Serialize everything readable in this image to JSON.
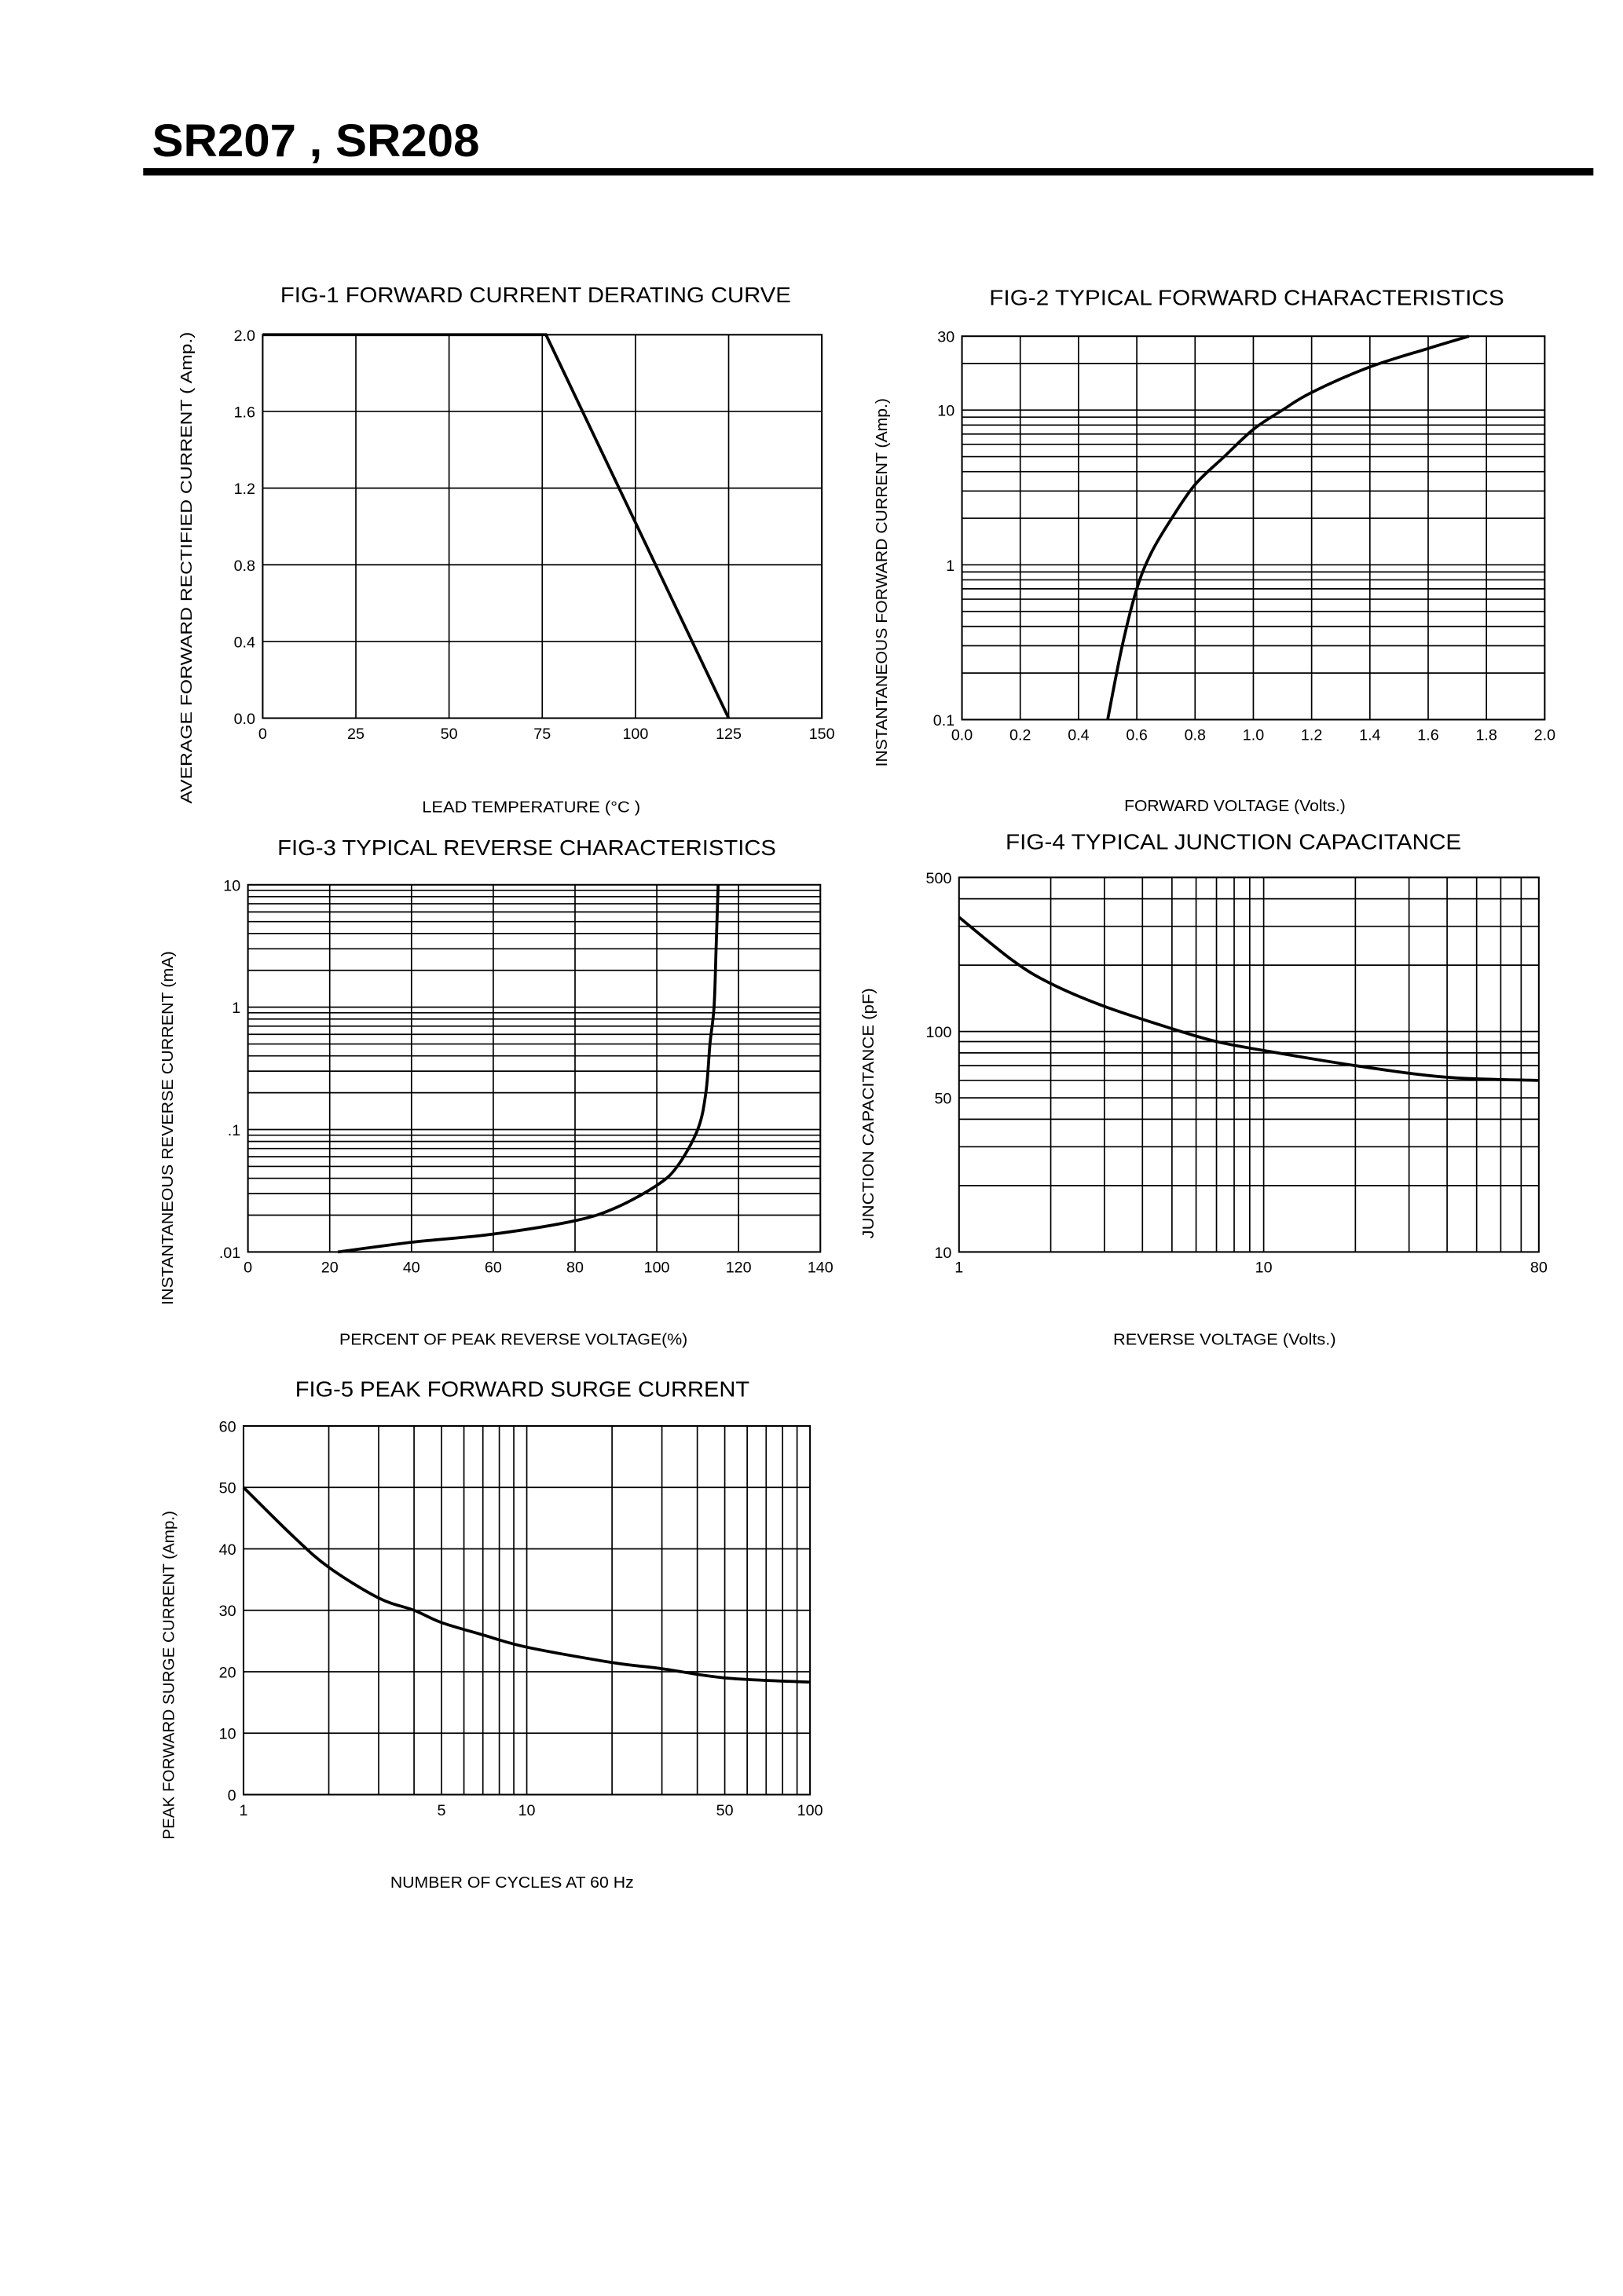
{
  "header": {
    "title": "SR207 , SR208"
  },
  "chart_data": [
    {
      "type": "line",
      "title": "FIG-1 FORWARD CURRENT DERATING CURVE",
      "xlabel": "LEAD TEMPERATURE (°C )",
      "ylabel": "AVERAGE FORWARD RECTIFIED CURRENT ( Amp.)",
      "xscale": "linear",
      "yscale": "linear",
      "xlim": [
        0,
        150
      ],
      "ylim": [
        0,
        2.0
      ],
      "xticks": [
        0,
        25,
        50,
        75,
        100,
        125,
        150
      ],
      "xtick_labels": [
        "0",
        "25",
        "50",
        "75",
        "100",
        "125",
        "150"
      ],
      "yticks": [
        0,
        0.4,
        0.8,
        1.2,
        1.6,
        2.0
      ],
      "ytick_labels": [
        "0.0",
        "0.4",
        "0.8",
        "1.2",
        "1.6",
        "2.0"
      ],
      "x_gridlines": [
        25,
        50,
        75,
        100,
        125
      ],
      "y_gridlines": [
        0.4,
        0.8,
        1.2,
        1.6
      ],
      "grid": true,
      "x": [
        0,
        76,
        125
      ],
      "y": [
        2.0,
        2.0,
        0.0
      ]
    },
    {
      "type": "line",
      "title": "FIG-2 TYPICAL FORWARD CHARACTERISTICS",
      "xlabel": "FORWARD VOLTAGE (Volts.)",
      "ylabel": "INSTANTANEOUS FORWARD CURRENT (Amp.)",
      "xscale": "linear",
      "yscale": "log",
      "xlim": [
        0,
        2.0
      ],
      "ylim": [
        0.1,
        30
      ],
      "xticks": [
        0,
        0.2,
        0.4,
        0.6,
        0.8,
        1.0,
        1.2,
        1.4,
        1.6,
        1.8,
        2.0
      ],
      "xtick_labels": [
        "0.0",
        "0.2",
        "0.4",
        "0.6",
        "0.8",
        "1.0",
        "1.2",
        "1.4",
        "1.6",
        "1.8",
        "2.0"
      ],
      "yticks": [
        0.1,
        1,
        10,
        30
      ],
      "ytick_labels": [
        "0.1",
        "1",
        "10",
        "30"
      ],
      "x_gridlines": [
        0.2,
        0.4,
        0.6,
        0.8,
        1.0,
        1.2,
        1.4,
        1.6,
        1.8
      ],
      "y_gridlines": [
        0.2,
        0.3,
        0.4,
        0.5,
        0.6,
        0.7,
        0.8,
        0.9,
        1,
        2,
        3,
        4,
        5,
        6,
        7,
        8,
        9,
        10,
        20
      ],
      "grid": true,
      "x": [
        0.5,
        0.55,
        0.6,
        0.65,
        0.72,
        0.8,
        0.9,
        1.0,
        1.1,
        1.2,
        1.4,
        1.6,
        1.74
      ],
      "y": [
        0.1,
        0.3,
        0.7,
        1.2,
        2.0,
        3.3,
        5.0,
        7.5,
        10,
        13,
        19,
        25,
        30
      ]
    },
    {
      "type": "line",
      "title": "FIG-3 TYPICAL REVERSE CHARACTERISTICS",
      "xlabel": "PERCENT OF PEAK REVERSE VOLTAGE(%)",
      "ylabel": "INSTANTANEOUS REVERSE CURRENT (mA)",
      "xscale": "linear",
      "yscale": "log",
      "xlim": [
        0,
        140
      ],
      "ylim": [
        0.01,
        10
      ],
      "xticks": [
        0,
        20,
        40,
        60,
        80,
        100,
        120,
        140
      ],
      "xtick_labels": [
        "0",
        "20",
        "40",
        "60",
        "80",
        "100",
        "120",
        "140"
      ],
      "yticks": [
        0.01,
        0.1,
        1,
        10
      ],
      "ytick_labels": [
        ".01",
        ".1",
        "1",
        "10"
      ],
      "x_gridlines": [
        20,
        40,
        60,
        80,
        100,
        120
      ],
      "y_gridlines": [
        0.02,
        0.03,
        0.04,
        0.05,
        0.06,
        0.07,
        0.08,
        0.09,
        0.1,
        0.2,
        0.3,
        0.4,
        0.5,
        0.6,
        0.7,
        0.8,
        0.9,
        1,
        2,
        3,
        4,
        5,
        6,
        7,
        8,
        9
      ],
      "grid": true,
      "x": [
        22,
        40,
        60,
        80,
        90,
        100,
        105,
        110,
        112,
        113,
        114,
        114.5,
        115
      ],
      "y": [
        0.01,
        0.012,
        0.014,
        0.018,
        0.023,
        0.035,
        0.05,
        0.1,
        0.2,
        0.5,
        1,
        3,
        10
      ]
    },
    {
      "type": "line",
      "title": "FIG-4 TYPICAL JUNCTION CAPACITANCE",
      "xlabel": "REVERSE VOLTAGE (Volts.)",
      "ylabel": "JUNCTION CAPACITANCE (pF)",
      "xscale": "log",
      "yscale": "log",
      "xlim": [
        1,
        80
      ],
      "ylim": [
        10,
        500
      ],
      "xticks": [
        1,
        10,
        80
      ],
      "xtick_labels": [
        "1",
        "10",
        "80"
      ],
      "yticks": [
        10,
        50,
        100,
        500
      ],
      "ytick_labels": [
        "10",
        "50",
        "100",
        "500"
      ],
      "x_gridlines": [
        2,
        3,
        4,
        5,
        6,
        7,
        8,
        9,
        10,
        20,
        30,
        40,
        50,
        60,
        70
      ],
      "y_gridlines": [
        20,
        30,
        40,
        50,
        60,
        70,
        80,
        90,
        100,
        200,
        300,
        400
      ],
      "grid": true,
      "x": [
        1,
        1.5,
        2,
        3,
        5,
        7,
        10,
        20,
        40,
        80
      ],
      "y": [
        330,
        210,
        165,
        130,
        103,
        90,
        82,
        70,
        62,
        60
      ]
    },
    {
      "type": "line",
      "title": "FIG-5 PEAK FORWARD SURGE CURRENT",
      "xlabel": "NUMBER OF CYCLES AT 60 Hz",
      "ylabel": "PEAK FORWARD SURGE CURRENT (Amp.)",
      "xscale": "log",
      "yscale": "linear",
      "xlim": [
        1,
        100
      ],
      "ylim": [
        0,
        60
      ],
      "xticks": [
        1,
        5,
        10,
        50,
        100
      ],
      "xtick_labels": [
        "1",
        "5",
        "10",
        "50",
        "100"
      ],
      "yticks": [
        0,
        10,
        20,
        30,
        40,
        50,
        60
      ],
      "ytick_labels": [
        "0",
        "10",
        "20",
        "30",
        "40",
        "50",
        "60"
      ],
      "x_gridlines": [
        2,
        3,
        4,
        5,
        6,
        7,
        8,
        9,
        10,
        20,
        30,
        40,
        50,
        60,
        70,
        80,
        90
      ],
      "y_gridlines": [
        10,
        20,
        30,
        40,
        50
      ],
      "grid": true,
      "x": [
        1,
        1.5,
        2,
        3,
        4,
        5,
        7,
        10,
        20,
        30,
        50,
        100
      ],
      "y": [
        50,
        42,
        37,
        32,
        30,
        28,
        26,
        24,
        21.5,
        20.5,
        19,
        18.3
      ]
    }
  ]
}
